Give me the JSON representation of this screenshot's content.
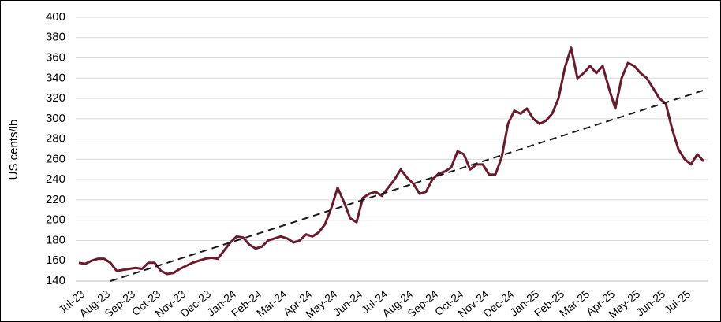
{
  "chart_data": {
    "type": "line",
    "y_label": "US cents/lb",
    "categories": [
      "Jul-23",
      null,
      null,
      null,
      "Aug-23",
      null,
      null,
      null,
      "Sep-23",
      null,
      null,
      null,
      "Oct-23",
      null,
      null,
      null,
      "Nov-23",
      null,
      null,
      null,
      "Dec-23",
      null,
      null,
      null,
      "Jan-24",
      null,
      null,
      null,
      "Feb-24",
      null,
      null,
      null,
      "Mar-24",
      null,
      null,
      null,
      "Apr-24",
      null,
      null,
      null,
      "May-24",
      null,
      null,
      null,
      "Jun-24",
      null,
      null,
      null,
      "Jul-24",
      null,
      null,
      null,
      "Aug-24",
      null,
      null,
      null,
      "Sep-24",
      null,
      null,
      null,
      "Oct-24",
      null,
      null,
      null,
      "Nov-24",
      null,
      null,
      null,
      "Dec-24",
      null,
      null,
      null,
      "Jan-25",
      null,
      null,
      null,
      "Feb-25",
      null,
      null,
      null,
      "Mar-25",
      null,
      null,
      null,
      "Apr-25",
      null,
      null,
      null,
      "May-25",
      null,
      null,
      null,
      "Jun-25",
      null,
      null,
      null,
      "Jul-25",
      null,
      null,
      null
    ],
    "series": [
      {
        "color": "#6b1a2c",
        "dashed": false,
        "values": [
          158,
          157,
          160,
          162,
          162,
          158,
          150,
          151,
          152,
          153,
          152,
          158,
          158,
          150,
          147,
          148,
          152,
          155,
          158,
          160,
          162,
          163,
          162,
          170,
          178,
          184,
          183,
          176,
          172,
          174,
          180,
          182,
          184,
          182,
          178,
          180,
          186,
          184,
          188,
          196,
          212,
          232,
          218,
          202,
          198,
          222,
          226,
          228,
          224,
          232,
          240,
          250,
          242,
          236,
          226,
          228,
          240,
          246,
          248,
          252,
          268,
          265,
          250,
          255,
          255,
          245,
          245,
          262,
          295,
          308,
          305,
          310,
          300,
          295,
          298,
          305,
          320,
          350,
          370,
          340,
          345,
          352,
          345,
          352,
          330,
          310,
          340,
          355,
          352,
          345,
          340,
          330,
          320,
          315,
          290,
          270,
          260,
          255,
          265,
          258
        ]
      },
      {
        "color": "#1a1a1a",
        "dashed": true,
        "values": [
          null,
          null,
          null,
          null,
          null,
          140,
          142,
          144,
          146,
          148,
          150,
          152,
          154,
          156,
          158,
          160,
          162,
          164,
          166,
          168,
          170,
          172,
          174,
          176,
          178,
          180,
          182,
          184,
          186,
          188,
          190,
          192,
          194,
          196,
          198,
          200,
          202,
          204,
          206,
          208,
          210,
          212,
          214,
          216,
          218,
          220,
          222,
          224,
          226,
          228,
          230,
          232,
          234,
          236,
          238,
          240,
          242,
          244,
          246,
          248,
          250,
          252,
          254,
          256,
          258,
          260,
          262,
          264,
          266,
          268,
          270,
          272,
          274,
          276,
          278,
          280,
          282,
          284,
          286,
          288,
          290,
          292,
          294,
          296,
          298,
          300,
          302,
          304,
          306,
          308,
          310,
          312,
          314,
          316,
          318,
          320,
          322,
          324,
          326,
          328
        ]
      }
    ],
    "ylim": [
      140,
      400
    ],
    "yticks": [
      140,
      160,
      180,
      200,
      220,
      240,
      260,
      280,
      300,
      320,
      340,
      360,
      380,
      400
    ],
    "grid": true
  }
}
